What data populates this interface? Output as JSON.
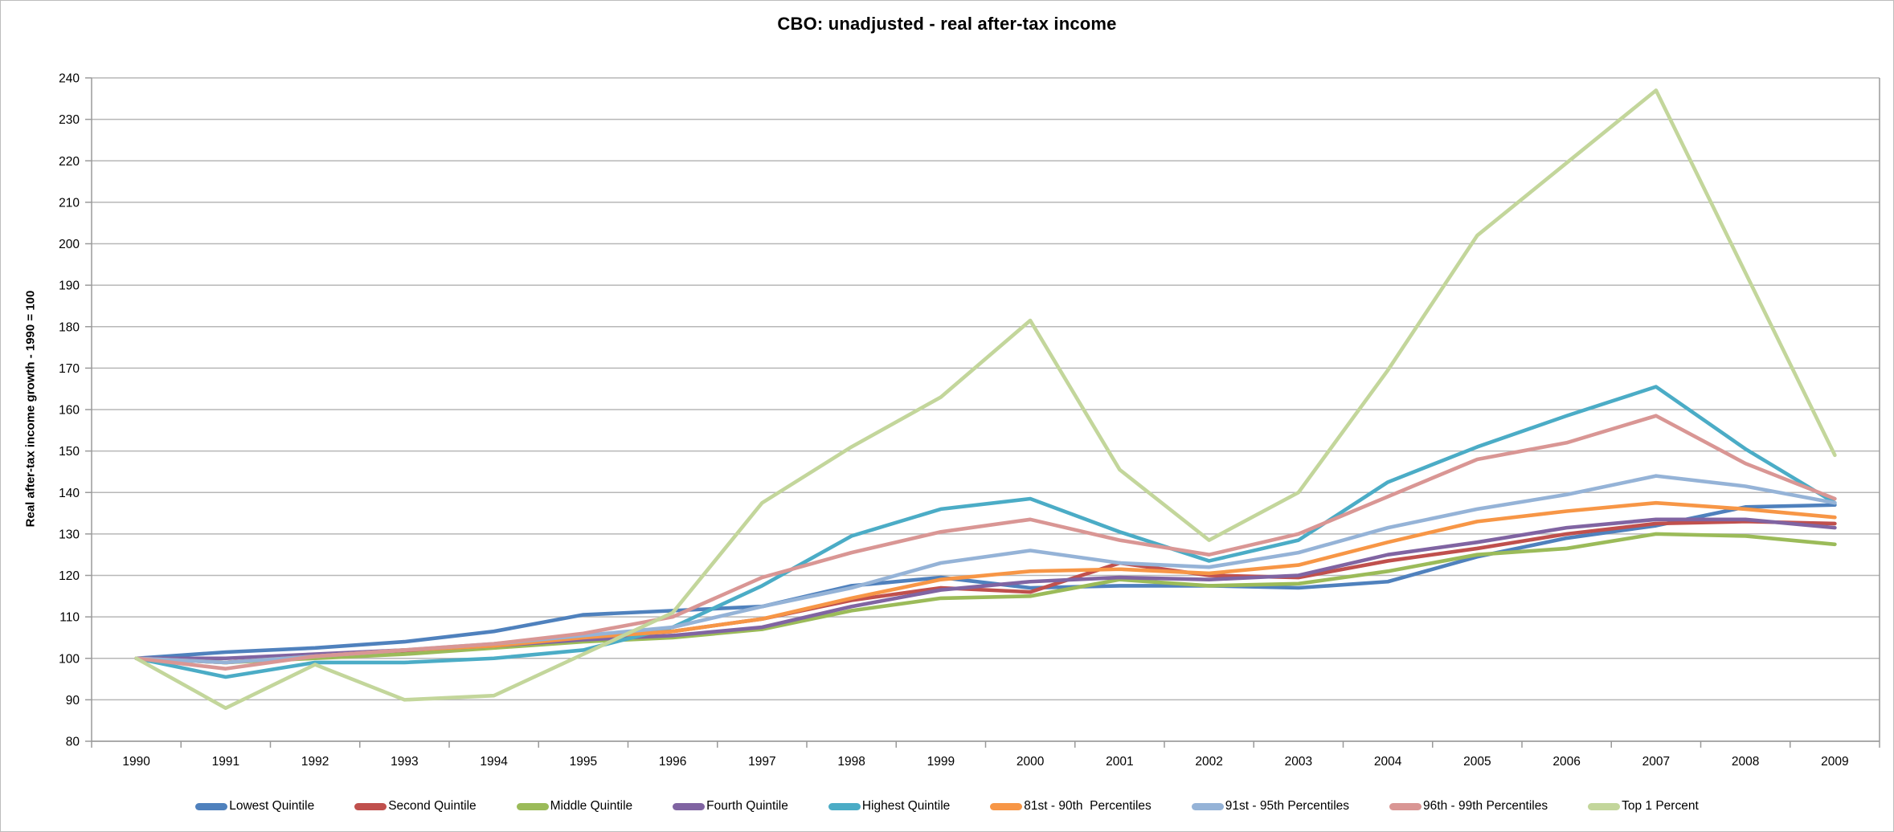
{
  "chart_data": {
    "type": "line",
    "title": "CBO: unadjusted - real after-tax income",
    "xlabel": "",
    "ylabel": "Real after-tax income growth - 1990 = 100",
    "ylim": [
      80,
      240
    ],
    "ytick_step": 10,
    "grid": true,
    "legend_position": "bottom",
    "categories": [
      "1990",
      "1991",
      "1992",
      "1993",
      "1994",
      "1995",
      "1996",
      "1997",
      "1998",
      "1999",
      "2000",
      "2001",
      "2002",
      "2003",
      "2004",
      "2005",
      "2006",
      "2007",
      "2008",
      "2009"
    ],
    "series": [
      {
        "name": "Lowest Quintile",
        "color": "#4F81BD",
        "values": [
          100,
          101.5,
          102.5,
          104,
          106.5,
          110.5,
          111.5,
          112.5,
          117.5,
          119.5,
          117,
          117.5,
          117.5,
          117,
          118.5,
          124.5,
          129,
          132,
          136.5,
          137
        ]
      },
      {
        "name": "Second Quintile",
        "color": "#C0504D",
        "values": [
          100,
          99,
          100.5,
          101.5,
          103,
          105,
          106.5,
          109.5,
          114,
          117,
          116,
          123,
          120,
          119.5,
          123.5,
          126.5,
          130,
          132.5,
          133,
          132.5
        ]
      },
      {
        "name": "Middle Quintile",
        "color": "#9BBB59",
        "values": [
          100,
          99,
          100,
          101,
          102.5,
          104,
          105,
          107,
          111.5,
          114.5,
          115,
          119,
          117.5,
          118,
          121,
          125,
          126.5,
          130,
          129.5,
          127.5
        ]
      },
      {
        "name": "Fourth Quintile",
        "color": "#8064A2",
        "values": [
          100,
          100,
          101,
          102,
          103,
          104.5,
          105.5,
          107.5,
          112.5,
          116.5,
          118.5,
          119.5,
          119,
          120,
          125,
          128,
          131.5,
          133.5,
          133.5,
          131.5
        ]
      },
      {
        "name": "Highest Quintile",
        "color": "#4BACC6",
        "values": [
          100,
          95.5,
          99,
          99,
          100,
          102,
          107.5,
          117.5,
          129.5,
          136,
          138.5,
          130.5,
          123.5,
          128.5,
          142.5,
          151,
          158.5,
          165.5,
          150.5,
          137.5
        ]
      },
      {
        "name": "81st - 90th  Percentiles",
        "color": "#F79646",
        "values": [
          100,
          99,
          100.5,
          102,
          103,
          105,
          106.5,
          109.5,
          114.5,
          119,
          121,
          121.5,
          120.5,
          122.5,
          128,
          133,
          135.5,
          137.5,
          136,
          134
        ]
      },
      {
        "name": "91st - 95th Percentiles",
        "color": "#95B3D7",
        "values": [
          100,
          99,
          100.5,
          102,
          103.5,
          105.5,
          107.5,
          112.5,
          117,
          123,
          126,
          123,
          122,
          125.5,
          131.5,
          136,
          139.5,
          144,
          141.5,
          137.5
        ]
      },
      {
        "name": "96th - 99th Percentiles",
        "color": "#D99694",
        "values": [
          100,
          97.5,
          100.5,
          102,
          103.5,
          106,
          110,
          119.5,
          125.5,
          130.5,
          133.5,
          128.5,
          125,
          130,
          139,
          148,
          152,
          158.5,
          147,
          138.5
        ]
      },
      {
        "name": "Top 1 Percent",
        "color": "#C3D69B",
        "values": [
          100,
          88,
          98.5,
          90,
          91,
          101,
          111,
          137.5,
          151,
          163,
          181.5,
          145.5,
          128.5,
          140,
          169.5,
          202,
          219.5,
          237,
          193,
          149
        ]
      }
    ]
  }
}
